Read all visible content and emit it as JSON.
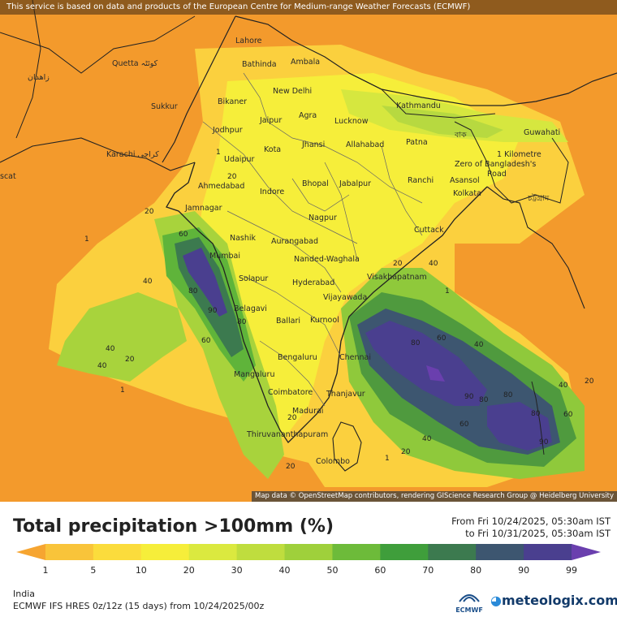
{
  "header": {
    "attribution_top": "This service is based on data and products of the European Centre for Medium-range Weather Forecasts (ECMWF)",
    "attribution_bottom": "Map data © OpenStreetMap contributors, rendering GIScience Research Group @ Heidelberg University"
  },
  "title": "Total precipitation >100mm (%)",
  "date_from": "From Fri 10/24/2025, 05:30am IST",
  "date_to": "to Fri 10/31/2025, 05:30am IST",
  "region": "India",
  "model": "ECMWF IFS HRES 0z/12z (15 days) from 10/24/2025/00z",
  "branding": {
    "ecmwf": "ECMWF",
    "meteologix": "meteologix.com"
  },
  "legend": {
    "ticks": [
      "1",
      "5",
      "10",
      "20",
      "30",
      "40",
      "50",
      "60",
      "70",
      "80",
      "90",
      "99"
    ],
    "colors": [
      "#f6a531",
      "#f9c43a",
      "#fbdc3c",
      "#f6ee3a",
      "#dbe93f",
      "#bfdd3e",
      "#9fd03b",
      "#6dbb3a",
      "#3f9e3b",
      "#3c7a4f",
      "#3d5670",
      "#4a3f8f",
      "#6a3fae"
    ]
  },
  "cities": [
    {
      "name": "Lahore"
    },
    {
      "name": "Quetta کوئٹہ"
    },
    {
      "name": "زاهدان"
    },
    {
      "name": "Bathinda"
    },
    {
      "name": "Ambala"
    },
    {
      "name": "New Delhi"
    },
    {
      "name": "Sukkur"
    },
    {
      "name": "Bikaner"
    },
    {
      "name": "Jaipur"
    },
    {
      "name": "Agra"
    },
    {
      "name": "Lucknow"
    },
    {
      "name": "Kathmandu"
    },
    {
      "name": "Jodhpur"
    },
    {
      "name": "Jhansi"
    },
    {
      "name": "Allahabad"
    },
    {
      "name": "Patna"
    },
    {
      "name": "Guwahati"
    },
    {
      "name": "Karachi کراچی"
    },
    {
      "name": "Kota"
    },
    {
      "name": "Udaipur"
    },
    {
      "name": "Ahmedabad"
    },
    {
      "name": "Indore"
    },
    {
      "name": "Bhopal"
    },
    {
      "name": "Jabalpur"
    },
    {
      "name": "Ranchi"
    },
    {
      "name": "Asansol"
    },
    {
      "name": "Kolkata"
    },
    {
      "name": "Jamnagar"
    },
    {
      "name": "Nagpur"
    },
    {
      "name": "Cuttack"
    },
    {
      "name": "Nashik"
    },
    {
      "name": "Aurangabad"
    },
    {
      "name": "Mumbai"
    },
    {
      "name": "Nanded-Waghala"
    },
    {
      "name": "Solapur"
    },
    {
      "name": "Hyderabad"
    },
    {
      "name": "Visakhapatnam"
    },
    {
      "name": "Vijayawada"
    },
    {
      "name": "Belagavi"
    },
    {
      "name": "Ballari"
    },
    {
      "name": "Kurnool"
    },
    {
      "name": "Bengaluru"
    },
    {
      "name": "Chennai"
    },
    {
      "name": "Mangaluru"
    },
    {
      "name": "Coimbatore"
    },
    {
      "name": "Thanjavur"
    },
    {
      "name": "Madurai"
    },
    {
      "name": "Thiruvananthapuram"
    },
    {
      "name": "Colombo"
    },
    {
      "name": "scat"
    },
    {
      "name": "1 Kilometre"
    },
    {
      "name": "Zero of Bangladesh's"
    },
    {
      "name": "Road"
    },
    {
      "name": "চট্টগ্রাম"
    },
    {
      "name": "বাক"
    }
  ],
  "contour_labels": [
    "1",
    "20",
    "40",
    "60",
    "80",
    "90",
    "20",
    "40",
    "60",
    "80",
    "1",
    "20",
    "40",
    "20",
    "40",
    "1",
    "60",
    "80",
    "90",
    "80",
    "60",
    "40",
    "20",
    "1",
    "20",
    "40",
    "60",
    "80",
    "90",
    "80",
    "1",
    "20",
    "40",
    "20"
  ]
}
